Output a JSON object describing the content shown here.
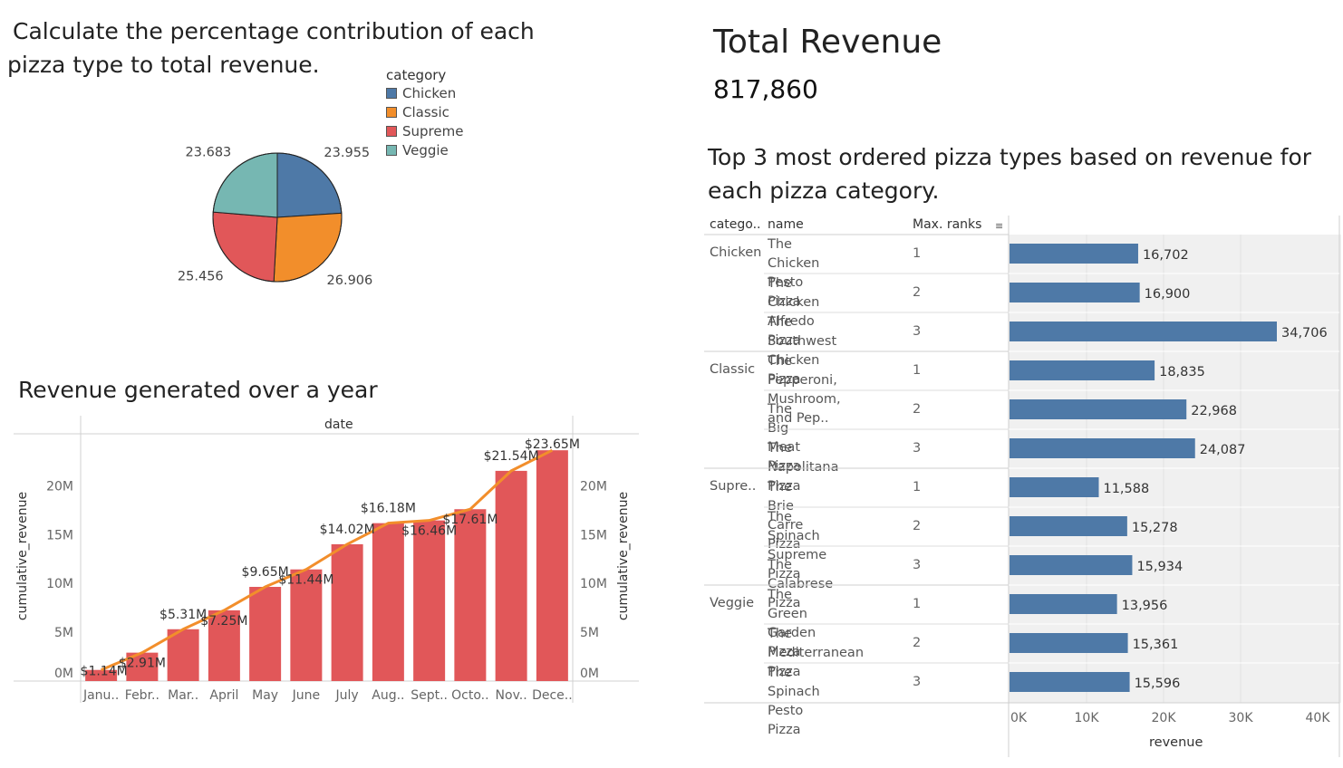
{
  "pie_panel": {
    "title_line1": "Calculate the percentage contribution of each",
    "title_line2": "pizza type to total revenue.",
    "legend_title": "category",
    "legend": [
      {
        "label": "Chicken",
        "color": "#4e79a7"
      },
      {
        "label": "Classic",
        "color": "#f28e2b"
      },
      {
        "label": "Supreme",
        "color": "#e15759"
      },
      {
        "label": "Veggie",
        "color": "#76b7b2"
      }
    ]
  },
  "revenue_panel": {
    "title": "Total Revenue",
    "value": "817,860"
  },
  "top3_panel": {
    "title_line1": "Top 3 most ordered pizza types based on revenue for",
    "title_line2": "each pizza category.",
    "col_category": "catego..",
    "col_name": "name",
    "col_rank": "Max. ranks",
    "axis_label": "revenue",
    "axis_ticks": [
      "0K",
      "10K",
      "20K",
      "30K",
      "40K"
    ]
  },
  "year_panel": {
    "title": "Revenue generated over a year",
    "top_label": "date",
    "ylabel_left": "cumulative_revenue",
    "ylabel_right": "cumulative_revenue",
    "y_ticks": [
      "0M",
      "5M",
      "10M",
      "15M",
      "20M"
    ]
  },
  "chart_data": [
    {
      "type": "pie",
      "legend_title": "category",
      "categories": [
        "Chicken",
        "Classic",
        "Supreme",
        "Veggie"
      ],
      "values": [
        23.955,
        26.906,
        25.456,
        23.683
      ],
      "labels": [
        "23.955",
        "26.906",
        "25.456",
        "23.683"
      ],
      "colors": [
        "#4e79a7",
        "#f28e2b",
        "#e15759",
        "#76b7b2"
      ],
      "legend_placement": "top-right"
    },
    {
      "type": "bar",
      "orientation": "horizontal",
      "xlabel": "revenue",
      "xlim": [
        0,
        40000
      ],
      "x_ticks": [
        "0K",
        "10K",
        "20K",
        "30K",
        "40K"
      ],
      "color": "#4e79a7",
      "groups": [
        {
          "category": "Chicken",
          "rows": [
            {
              "name_line1": "The Chicken Pesto",
              "name_line2": "Pizza",
              "rank": "1",
              "value": 16702,
              "label": "16,702"
            },
            {
              "name_line1": "The Chicken Alfredo",
              "name_line2": "Pizza",
              "rank": "2",
              "value": 16900,
              "label": "16,900"
            },
            {
              "name_line1": "The Southwest",
              "name_line2": "Chicken Pizza",
              "rank": "3",
              "value": 34706,
              "label": "34,706"
            }
          ]
        },
        {
          "category": "Classic",
          "rows": [
            {
              "name_line1": "The Pepperoni,",
              "name_line2": "Mushroom, and Pep..",
              "rank": "1",
              "value": 18835,
              "label": "18,835"
            },
            {
              "name_line1": "The Big Meat Pizza",
              "name_line2": "",
              "rank": "2",
              "value": 22968,
              "label": "22,968"
            },
            {
              "name_line1": "The Napolitana Pizza",
              "name_line2": "",
              "rank": "3",
              "value": 24087,
              "label": "24,087"
            }
          ]
        },
        {
          "category": "Supre..",
          "rows": [
            {
              "name_line1": "The Brie Carre Pizza",
              "name_line2": "",
              "rank": "1",
              "value": 11588,
              "label": "11,588"
            },
            {
              "name_line1": "The Spinach Supreme",
              "name_line2": "Pizza",
              "rank": "2",
              "value": 15278,
              "label": "15,278"
            },
            {
              "name_line1": "The Calabrese Pizza",
              "name_line2": "",
              "rank": "3",
              "value": 15934,
              "label": "15,934"
            }
          ]
        },
        {
          "category": "Veggie",
          "rows": [
            {
              "name_line1": "The Green Garden",
              "name_line2": "Pizza",
              "rank": "1",
              "value": 13956,
              "label": "13,956"
            },
            {
              "name_line1": "The Mediterranean",
              "name_line2": "Pizza",
              "rank": "2",
              "value": 15361,
              "label": "15,361"
            },
            {
              "name_line1": "The Spinach Pesto",
              "name_line2": "Pizza",
              "rank": "3",
              "value": 15596,
              "label": "15,596"
            }
          ]
        }
      ]
    },
    {
      "type": "bar",
      "combo_with": "line",
      "top_label": "date",
      "ylabel": "cumulative_revenue",
      "ylim": [
        0,
        25000000
      ],
      "y_ticks": [
        "0M",
        "5M",
        "10M",
        "15M",
        "20M"
      ],
      "bar_color": "#e15759",
      "line_color": "#f28e2b",
      "categories": [
        "Janu..",
        "Febr..",
        "Mar..",
        "April",
        "May",
        "June",
        "July",
        "Aug..",
        "Sept..",
        "Octo..",
        "Nov..",
        "Dece.."
      ],
      "values": [
        1140000,
        2910000,
        5310000,
        7250000,
        9650000,
        11440000,
        14020000,
        16180000,
        16460000,
        17610000,
        21540000,
        23650000
      ],
      "labels": [
        "$1.14M",
        "$2.91M",
        "$5.31M",
        "$7.25M",
        "$9.65M",
        "$11.44M",
        "$14.02M",
        "$16.18M",
        "$16.46M",
        "$17.61M",
        "$21.54M",
        "$23.65M"
      ]
    }
  ]
}
